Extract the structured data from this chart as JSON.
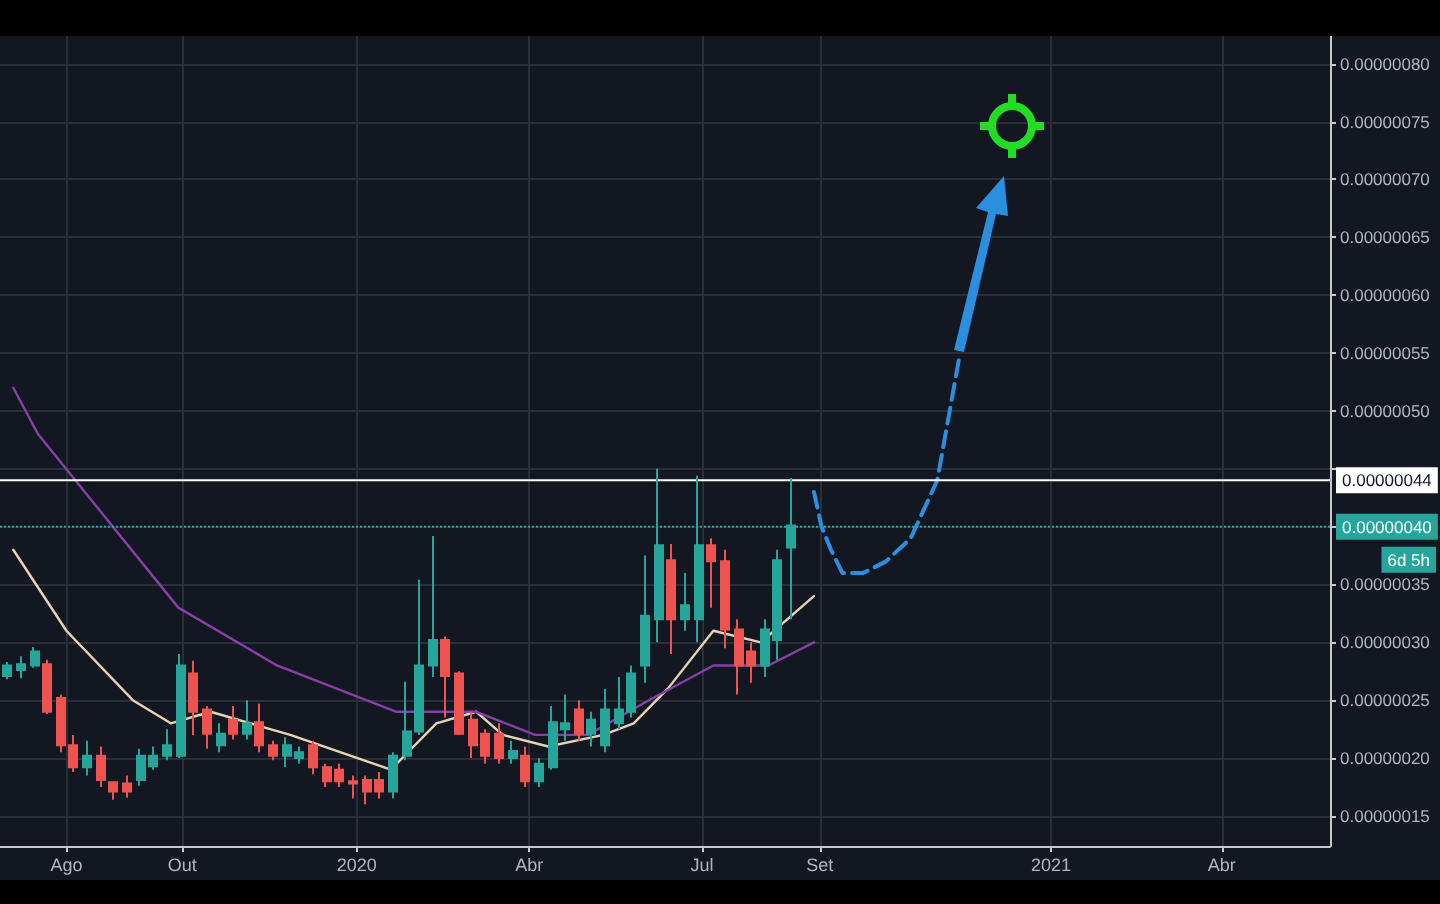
{
  "chart_data": {
    "type": "candlestick",
    "x": [
      "2019-07-01",
      "2019-07-08",
      "2019-07-15",
      "2019-07-22",
      "2019-07-29",
      "2019-08-05",
      "2019-08-12",
      "2019-08-19",
      "2019-08-26",
      "2019-09-02",
      "2019-09-09",
      "2019-09-16",
      "2019-09-23",
      "2019-09-30",
      "2019-10-07",
      "2019-10-14",
      "2019-10-21",
      "2019-10-28",
      "2019-11-04",
      "2019-11-11",
      "2019-11-18",
      "2019-11-25",
      "2019-12-02",
      "2019-12-09",
      "2019-12-16",
      "2019-12-23",
      "2019-12-30",
      "2020-01-06",
      "2020-01-13",
      "2020-01-20",
      "2020-01-27",
      "2020-02-03",
      "2020-02-10",
      "2020-02-17",
      "2020-02-24",
      "2020-03-02",
      "2020-03-09",
      "2020-03-16",
      "2020-03-23",
      "2020-03-30",
      "2020-04-06",
      "2020-04-13",
      "2020-04-20",
      "2020-04-27",
      "2020-05-04",
      "2020-05-11",
      "2020-05-18",
      "2020-05-25",
      "2020-06-01",
      "2020-06-08",
      "2020-06-15",
      "2020-06-22",
      "2020-06-29",
      "2020-07-06",
      "2020-07-13",
      "2020-07-20",
      "2020-07-27",
      "2020-08-03",
      "2020-08-10",
      "2020-08-17"
    ],
    "ohlc": [
      [
        2.71e-07,
        2.83e-07,
        2.68e-07,
        2.8e-07
      ],
      [
        2.76e-07,
        2.88e-07,
        2.69e-07,
        2.81e-07
      ],
      [
        2.8e-07,
        2.96e-07,
        2.78e-07,
        2.92e-07
      ],
      [
        2.81e-07,
        2.85e-07,
        2.38e-07,
        2.4e-07
      ],
      [
        2.52e-07,
        2.55e-07,
        2.05e-07,
        2.11e-07
      ],
      [
        2.11e-07,
        2.2e-07,
        1.88e-07,
        1.92e-07
      ],
      [
        1.92e-07,
        2.15e-07,
        1.85e-07,
        2.02e-07
      ],
      [
        2.02e-07,
        2.1e-07,
        1.75e-07,
        1.81e-07
      ],
      [
        1.79e-07,
        1.8e-07,
        1.64e-07,
        1.71e-07
      ],
      [
        1.78e-07,
        1.85e-07,
        1.66e-07,
        1.71e-07
      ],
      [
        1.81e-07,
        2.08e-07,
        1.76e-07,
        2.02e-07
      ],
      [
        1.93e-07,
        2.1e-07,
        1.9e-07,
        2.02e-07
      ],
      [
        2.02e-07,
        2.25e-07,
        1.98e-07,
        2.11e-07
      ],
      [
        2.02e-07,
        2.9e-07,
        2e-07,
        2.8e-07
      ],
      [
        2.73e-07,
        2.84e-07,
        2.2e-07,
        2.4e-07
      ],
      [
        2.42e-07,
        2.45e-07,
        2.08e-07,
        2.21e-07
      ],
      [
        2.11e-07,
        2.3e-07,
        2.05e-07,
        2.21e-07
      ],
      [
        2.33e-07,
        2.45e-07,
        2.16e-07,
        2.21e-07
      ],
      [
        2.21e-07,
        2.5e-07,
        2.16e-07,
        2.3e-07
      ],
      [
        2.31e-07,
        2.47e-07,
        2.05e-07,
        2.11e-07
      ],
      [
        2.11e-07,
        2.15e-07,
        1.98e-07,
        2.02e-07
      ],
      [
        2.02e-07,
        2.18e-07,
        1.92e-07,
        2.11e-07
      ],
      [
        2e-07,
        2.1e-07,
        1.95e-07,
        2.05e-07
      ],
      [
        2.11e-07,
        2.15e-07,
        1.86e-07,
        1.92e-07
      ],
      [
        1.92e-07,
        1.95e-07,
        1.75e-07,
        1.8e-07
      ],
      [
        1.9e-07,
        1.95e-07,
        1.75e-07,
        1.8e-07
      ],
      [
        1.8e-07,
        1.85e-07,
        1.65e-07,
        1.78e-07
      ],
      [
        1.81e-07,
        1.85e-07,
        1.6e-07,
        1.71e-07
      ],
      [
        1.81e-07,
        1.88e-07,
        1.65e-07,
        1.71e-07
      ],
      [
        1.71e-07,
        2.05e-07,
        1.65e-07,
        2.02e-07
      ],
      [
        2.02e-07,
        2.66e-07,
        1.98e-07,
        2.23e-07
      ],
      [
        2.23e-07,
        3.54e-07,
        2.2e-07,
        2.8e-07
      ],
      [
        2.8e-07,
        3.92e-07,
        2.7e-07,
        3.02e-07
      ],
      [
        3.02e-07,
        3.05e-07,
        2.35e-07,
        2.71e-07
      ],
      [
        2.73e-07,
        2.75e-07,
        2.2e-07,
        2.21e-07
      ],
      [
        2.33e-07,
        2.4e-07,
        2e-07,
        2.11e-07
      ],
      [
        2.21e-07,
        2.25e-07,
        1.95e-07,
        2.02e-07
      ],
      [
        2.21e-07,
        2.3e-07,
        1.95e-07,
        2e-07
      ],
      [
        2e-07,
        2.15e-07,
        1.95e-07,
        2.06e-07
      ],
      [
        2.02e-07,
        2.1e-07,
        1.75e-07,
        1.8e-07
      ],
      [
        1.8e-07,
        2e-07,
        1.75e-07,
        1.95e-07
      ],
      [
        1.92e-07,
        2.45e-07,
        1.9e-07,
        2.31e-07
      ],
      [
        2.25e-07,
        2.55e-07,
        2.15e-07,
        2.3e-07
      ],
      [
        2.42e-07,
        2.5e-07,
        2.15e-07,
        2.21e-07
      ],
      [
        2.21e-07,
        2.4e-07,
        2.1e-07,
        2.33e-07
      ],
      [
        2.11e-07,
        2.6e-07,
        2.05e-07,
        2.42e-07
      ],
      [
        2.3e-07,
        2.7e-07,
        2.25e-07,
        2.42e-07
      ],
      [
        2.4e-07,
        2.8e-07,
        2.35e-07,
        2.73e-07
      ],
      [
        2.8e-07,
        3.75e-07,
        2.65e-07,
        3.23e-07
      ],
      [
        3.2e-07,
        4.5e-07,
        3e-07,
        3.84e-07
      ],
      [
        3.71e-07,
        3.85e-07,
        2.9e-07,
        3.2e-07
      ],
      [
        3.2e-07,
        3.6e-07,
        3.1e-07,
        3.32e-07
      ],
      [
        3.2e-07,
        4.44e-07,
        3e-07,
        3.84e-07
      ],
      [
        3.84e-07,
        3.9e-07,
        3.3e-07,
        3.7e-07
      ],
      [
        3.7e-07,
        3.8e-07,
        2.95e-07,
        3.11e-07
      ],
      [
        3.11e-07,
        3.2e-07,
        2.55e-07,
        2.8e-07
      ],
      [
        2.92e-07,
        3e-07,
        2.65e-07,
        2.8e-07
      ],
      [
        2.8e-07,
        3.2e-07,
        2.7e-07,
        3.11e-07
      ],
      [
        3.02e-07,
        3.8e-07,
        2.85e-07,
        3.71e-07
      ],
      [
        3.82e-07,
        4.42e-07,
        3.2e-07,
        4.01e-07
      ]
    ],
    "colors": [
      "#26a69a",
      "#26a69a",
      "#26a69a",
      "#ef5350",
      "#ef5350",
      "#ef5350",
      "#26a69a",
      "#ef5350",
      "#ef5350",
      "#ef5350",
      "#26a69a",
      "#26a69a",
      "#26a69a",
      "#26a69a",
      "#ef5350",
      "#ef5350",
      "#26a69a",
      "#ef5350",
      "#26a69a",
      "#ef5350",
      "#ef5350",
      "#26a69a",
      "#26a69a",
      "#ef5350",
      "#ef5350",
      "#ef5350",
      "#ef5350",
      "#ef5350",
      "#ef5350",
      "#26a69a",
      "#26a69a",
      "#26a69a",
      "#26a69a",
      "#ef5350",
      "#ef5350",
      "#ef5350",
      "#ef5350",
      "#ef5350",
      "#26a69a",
      "#ef5350",
      "#26a69a",
      "#26a69a",
      "#26a69a",
      "#ef5350",
      "#26a69a",
      "#26a69a",
      "#26a69a",
      "#26a69a",
      "#26a69a",
      "#26a69a",
      "#ef5350",
      "#26a69a",
      "#26a69a",
      "#ef5350",
      "#ef5350",
      "#ef5350",
      "#ef5350",
      "#26a69a",
      "#26a69a",
      "#26a69a"
    ],
    "series": [
      {
        "type": "line",
        "color": "#e6d3b3",
        "x": [
          "2019-07-04",
          "2019-08-01",
          "2019-09-05",
          "2019-09-25",
          "2019-10-16",
          "2019-11-27",
          "2020-01-19",
          "2020-02-12",
          "2020-03-04",
          "2020-03-18",
          "2020-04-11",
          "2020-05-10",
          "2020-05-26",
          "2020-06-13",
          "2020-07-07",
          "2020-08-01",
          "2020-08-29"
        ],
        "values": [
          3.8e-07,
          3.1e-07,
          2.5e-07,
          2.3e-07,
          2.4e-07,
          2.2e-07,
          1.9e-07,
          2.3e-07,
          2.4e-07,
          2.2e-07,
          2.1e-07,
          2.2e-07,
          2.3e-07,
          2.6e-07,
          3.1e-07,
          3e-07,
          3.4e-07
        ]
      },
      {
        "type": "line",
        "color": "#8a3fa8",
        "x": [
          "2019-07-04",
          "2019-07-17",
          "2019-09-29",
          "2019-11-20",
          "2020-01-22",
          "2020-02-05",
          "2020-03-04",
          "2020-04-04",
          "2020-05-02",
          "2020-06-03",
          "2020-07-07",
          "2020-08-05",
          "2020-08-29"
        ],
        "values": [
          5.2e-07,
          4.8e-07,
          3.3e-07,
          2.8e-07,
          2.4e-07,
          2.4e-07,
          2.4e-07,
          2.2e-07,
          2.2e-07,
          2.5e-07,
          2.8e-07,
          2.8e-07,
          3e-07
        ]
      },
      {
        "type": "line",
        "color": "#2b8fe0",
        "line_style": "dashed",
        "x": [
          "2020-08-29",
          "2020-09-02",
          "2020-09-07",
          "2020-09-13",
          "2020-09-24",
          "2020-10-06",
          "2020-10-19",
          "2020-11-02",
          "2020-11-14"
        ],
        "values": [
          4.3e-07,
          4e-07,
          3.8e-07,
          3.6e-07,
          3.6e-07,
          3.7e-07,
          3.9e-07,
          4.4e-07,
          5.5e-07
        ]
      }
    ],
    "xlim": [
      "2019-06-27",
      "2021-05-28"
    ],
    "xticks": [
      {
        "value": "2019-08-01",
        "label": "Ago"
      },
      {
        "value": "2019-10-01",
        "label": "Out"
      },
      {
        "value": "2020-01-01",
        "label": "2020"
      },
      {
        "value": "2020-04-01",
        "label": "Abr"
      },
      {
        "value": "2020-07-01",
        "label": "Jul"
      },
      {
        "value": "2020-09-01",
        "label": "Set"
      },
      {
        "value": "2021-01-01",
        "label": "2021"
      },
      {
        "value": "2021-04-01",
        "label": "Abr"
      }
    ],
    "ylim": [
      1.24e-07,
      8.24e-07
    ],
    "yticks": [
      {
        "value": 1.5e-07,
        "label": "0.00000015"
      },
      {
        "value": 2e-07,
        "label": "0.00000020"
      },
      {
        "value": 2.5e-07,
        "label": "0.00000025"
      },
      {
        "value": 3e-07,
        "label": "0.00000030"
      },
      {
        "value": 3.5e-07,
        "label": "0.00000035"
      },
      {
        "value": 4e-07,
        "label": null
      },
      {
        "value": 4.5e-07,
        "label": null
      },
      {
        "value": 5e-07,
        "label": "0.00000050"
      },
      {
        "value": 5.5e-07,
        "label": "0.00000055"
      },
      {
        "value": 6e-07,
        "label": "0.00000060"
      },
      {
        "value": 6.5e-07,
        "label": "0.00000065"
      },
      {
        "value": 7e-07,
        "label": "0.00000070"
      },
      {
        "value": 7.5e-07,
        "label": "0.00000075"
      },
      {
        "value": 8e-07,
        "label": "0.00000080"
      }
    ],
    "ref_lines": [
      {
        "axis": "y",
        "value": 4.4e-07,
        "label": "0.00000044",
        "color": "#ffffff",
        "line_style": "solid"
      },
      {
        "axis": "y",
        "value": 4e-07,
        "label": "0.00000040",
        "color": "#26a69a",
        "line_style": "dotted"
      }
    ],
    "annotations": [
      "6d 5h"
    ],
    "grid": true,
    "marker": "none"
  }
}
